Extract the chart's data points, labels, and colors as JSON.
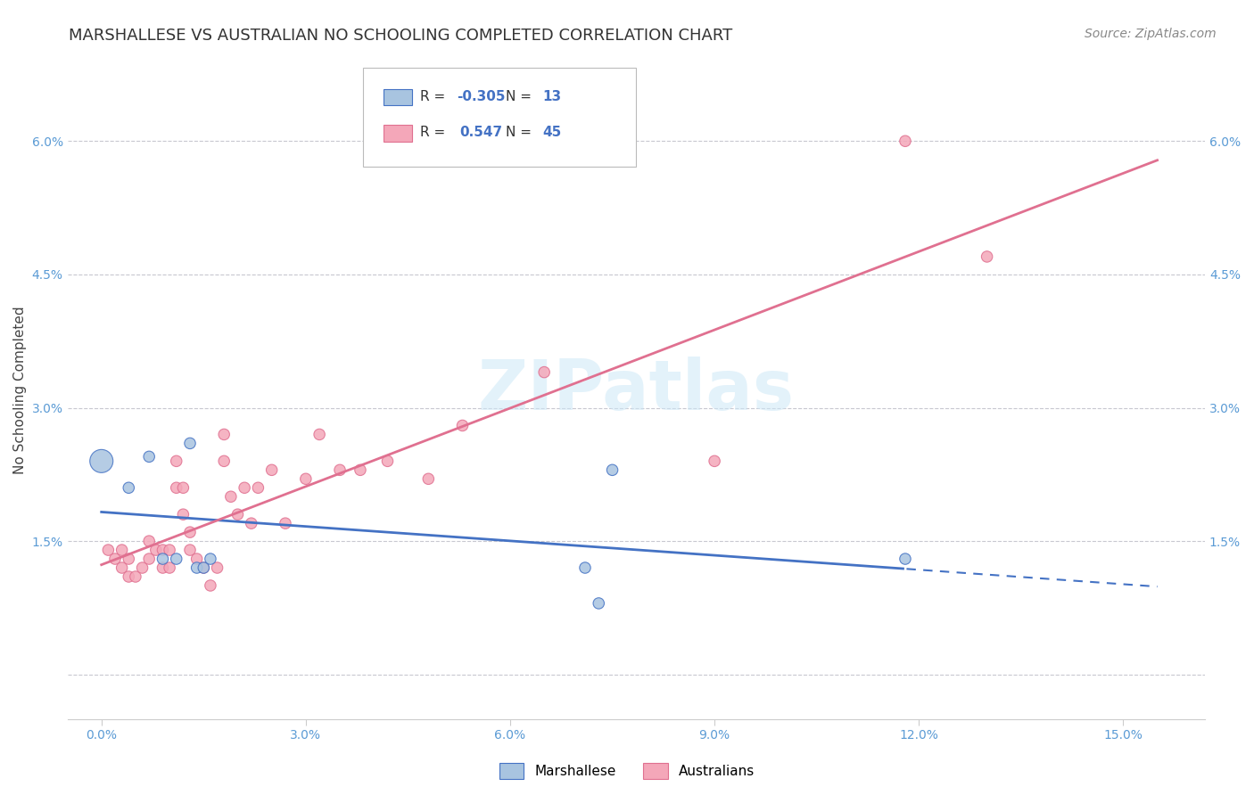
{
  "title": "MARSHALLESE VS AUSTRALIAN NO SCHOOLING COMPLETED CORRELATION CHART",
  "source": "Source: ZipAtlas.com",
  "ylabel": "No Schooling Completed",
  "xlabel_ticks": [
    0.0,
    0.03,
    0.06,
    0.09,
    0.12,
    0.15
  ],
  "xlabel_tick_labels": [
    "0.0%",
    "3.0%",
    "6.0%",
    "9.0%",
    "12.0%",
    "15.0%"
  ],
  "ylabel_ticks": [
    0.0,
    0.015,
    0.03,
    0.045,
    0.06
  ],
  "ylabel_tick_labels": [
    "",
    "1.5%",
    "3.0%",
    "4.5%",
    "6.0%"
  ],
  "xlim": [
    -0.005,
    0.162
  ],
  "ylim": [
    -0.005,
    0.069
  ],
  "watermark": "ZIPatlas",
  "marshallese_R": -0.305,
  "marshallese_N": 13,
  "australians_R": 0.547,
  "australians_N": 45,
  "marshallese_color": "#a8c4e0",
  "australians_color": "#f4a7b9",
  "line_marshallese_color": "#4472c4",
  "line_australians_color": "#e07090",
  "marshallese_x": [
    0.0,
    0.004,
    0.007,
    0.009,
    0.011,
    0.013,
    0.014,
    0.015,
    0.016,
    0.071,
    0.073,
    0.075,
    0.118
  ],
  "marshallese_y": [
    0.024,
    0.021,
    0.0245,
    0.013,
    0.013,
    0.026,
    0.012,
    0.012,
    0.013,
    0.012,
    0.008,
    0.023,
    0.013
  ],
  "marshallese_sizes": [
    350,
    80,
    80,
    80,
    80,
    80,
    80,
    80,
    80,
    80,
    80,
    80,
    80
  ],
  "australians_x": [
    0.001,
    0.002,
    0.003,
    0.003,
    0.004,
    0.004,
    0.005,
    0.006,
    0.007,
    0.007,
    0.008,
    0.009,
    0.009,
    0.01,
    0.01,
    0.011,
    0.011,
    0.012,
    0.012,
    0.013,
    0.013,
    0.014,
    0.015,
    0.016,
    0.017,
    0.018,
    0.018,
    0.019,
    0.02,
    0.021,
    0.022,
    0.023,
    0.025,
    0.027,
    0.03,
    0.032,
    0.035,
    0.038,
    0.042,
    0.048,
    0.053,
    0.065,
    0.09,
    0.118,
    0.13
  ],
  "australians_y": [
    0.014,
    0.013,
    0.012,
    0.014,
    0.011,
    0.013,
    0.011,
    0.012,
    0.013,
    0.015,
    0.014,
    0.012,
    0.014,
    0.012,
    0.014,
    0.024,
    0.021,
    0.018,
    0.021,
    0.016,
    0.014,
    0.013,
    0.012,
    0.01,
    0.012,
    0.024,
    0.027,
    0.02,
    0.018,
    0.021,
    0.017,
    0.021,
    0.023,
    0.017,
    0.022,
    0.027,
    0.023,
    0.023,
    0.024,
    0.022,
    0.028,
    0.034,
    0.024,
    0.06,
    0.047
  ],
  "australians_sizes": [
    80,
    80,
    80,
    80,
    80,
    80,
    80,
    80,
    80,
    80,
    80,
    80,
    80,
    80,
    80,
    80,
    80,
    80,
    80,
    80,
    80,
    80,
    80,
    80,
    80,
    80,
    80,
    80,
    80,
    80,
    80,
    80,
    80,
    80,
    80,
    80,
    80,
    80,
    80,
    80,
    80,
    80,
    80,
    80,
    80
  ],
  "legend_marshallese_label": "Marshallese",
  "legend_australians_label": "Australians",
  "bg_color": "#ffffff",
  "grid_color": "#c8c8d0",
  "tick_color": "#5b9bd5",
  "title_fontsize": 13,
  "source_fontsize": 10,
  "axis_label_fontsize": 11,
  "tick_fontsize": 10,
  "legend_fontsize": 11
}
